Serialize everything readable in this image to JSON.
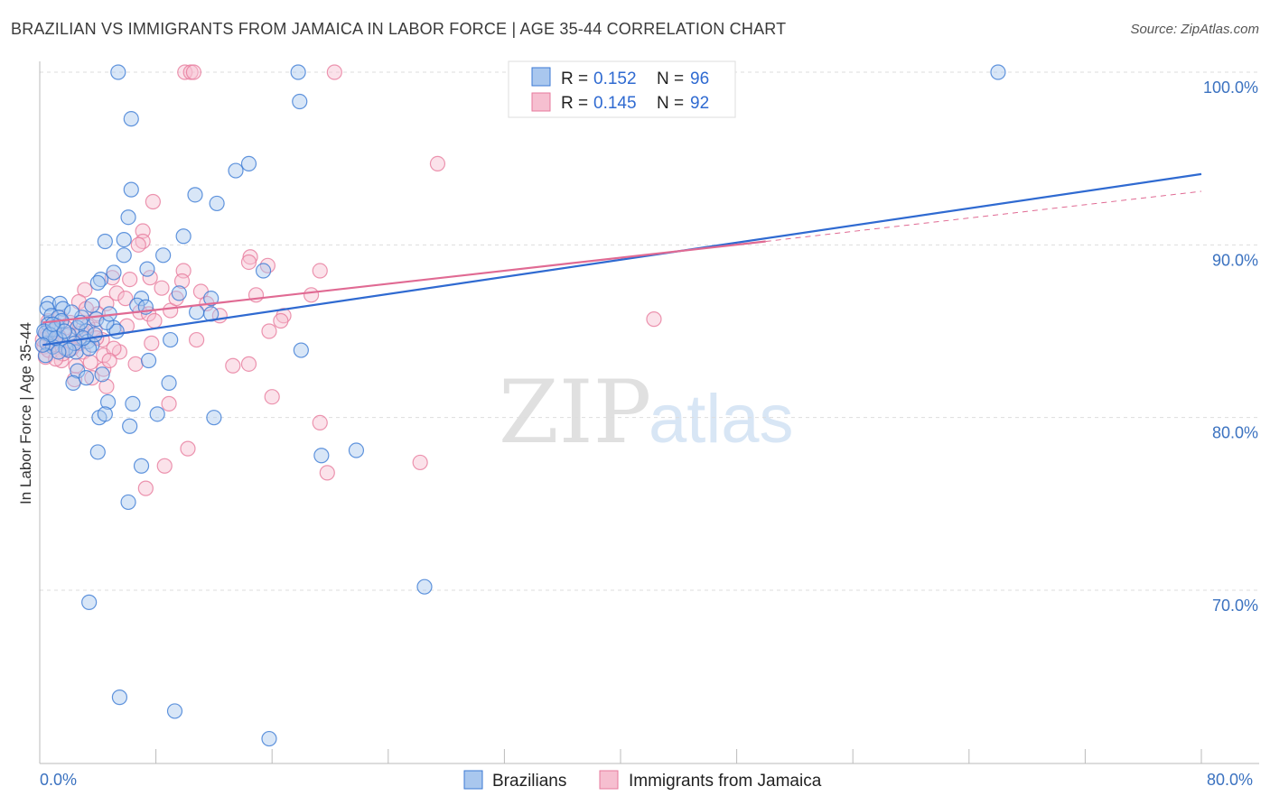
{
  "title": "BRAZILIAN VS IMMIGRANTS FROM JAMAICA IN LABOR FORCE | AGE 35-44 CORRELATION CHART",
  "source": "Source: ZipAtlas.com",
  "watermark": {
    "zip": "ZIP",
    "atlas": "atlas"
  },
  "colors": {
    "blue_fill": "#a9c7ee",
    "blue_stroke": "#3b7ad4",
    "blue_line": "#2f6ad1",
    "pink_fill": "#f6bfd0",
    "pink_stroke": "#e77a9c",
    "pink_line": "#e06a93",
    "axis_text": "#3b72c0",
    "grid": "#dddddd"
  },
  "legend": {
    "rows": [
      {
        "r_label": "R = ",
        "r_value": "0.152",
        "n_label": "N = ",
        "n_value": "96"
      },
      {
        "r_label": "R = ",
        "r_value": "0.145",
        "n_label": "N = ",
        "n_value": "92"
      }
    ]
  },
  "chart_data": {
    "type": "scatter",
    "xlabel": "",
    "ylabel": "In Labor Force | Age 35-44",
    "xlim": [
      0,
      80
    ],
    "ylim": [
      61.5,
      103
    ],
    "x_tick_labels": [
      "0.0%",
      "80.0%"
    ],
    "y_ticks": [
      100,
      90,
      80,
      70
    ],
    "y_tick_labels": [
      "100.0%",
      "90.0%",
      "80.0%",
      "70.0%"
    ],
    "grid": true,
    "legend_position": "top-center",
    "series": [
      {
        "name": "Brazilians",
        "color": "blue",
        "R": 0.152,
        "N": 96,
        "trend": {
          "x0": 0.2,
          "y0": 84.2,
          "x1": 80,
          "y1": 94.1
        },
        "points": [
          [
            5.4,
            100
          ],
          [
            17.8,
            100
          ],
          [
            66,
            100
          ],
          [
            17.9,
            98.3
          ],
          [
            6.3,
            97.3
          ],
          [
            14.4,
            94.7
          ],
          [
            13.5,
            94.3
          ],
          [
            6.3,
            93.2
          ],
          [
            10.7,
            92.9
          ],
          [
            12.2,
            92.4
          ],
          [
            6.1,
            91.6
          ],
          [
            9.9,
            90.5
          ],
          [
            4.5,
            90.2
          ],
          [
            5.8,
            90.3
          ],
          [
            5.8,
            89.4
          ],
          [
            8.5,
            89.4
          ],
          [
            7.4,
            88.6
          ],
          [
            15.4,
            88.5
          ],
          [
            5.1,
            88.4
          ],
          [
            4.2,
            88.0
          ],
          [
            4.0,
            87.8
          ],
          [
            9.6,
            87.2
          ],
          [
            11.8,
            86.9
          ],
          [
            7.0,
            86.9
          ],
          [
            0.6,
            86.6
          ],
          [
            1.4,
            86.6
          ],
          [
            0.5,
            86.3
          ],
          [
            1.6,
            86.3
          ],
          [
            3.6,
            86.5
          ],
          [
            6.7,
            86.5
          ],
          [
            10.8,
            86.1
          ],
          [
            11.8,
            86.0
          ],
          [
            7.3,
            86.4
          ],
          [
            0.8,
            85.9
          ],
          [
            1.3,
            85.8
          ],
          [
            2.9,
            85.8
          ],
          [
            3.9,
            85.7
          ],
          [
            0.6,
            85.4
          ],
          [
            1.2,
            85.3
          ],
          [
            2.6,
            85.2
          ],
          [
            3.2,
            85.0
          ],
          [
            5.1,
            85.2
          ],
          [
            5.3,
            85.0
          ],
          [
            0.4,
            84.9
          ],
          [
            2.0,
            84.8
          ],
          [
            0.5,
            84.3
          ],
          [
            1.4,
            84.5
          ],
          [
            0.9,
            84.1
          ],
          [
            3.3,
            84.4
          ],
          [
            3.6,
            84.2
          ],
          [
            9.0,
            84.5
          ],
          [
            0.4,
            83.6
          ],
          [
            2.5,
            83.8
          ],
          [
            3.4,
            84.0
          ],
          [
            18.0,
            83.9
          ],
          [
            7.5,
            83.3
          ],
          [
            2.6,
            82.7
          ],
          [
            4.3,
            82.5
          ],
          [
            2.3,
            82.0
          ],
          [
            8.9,
            82.0
          ],
          [
            3.2,
            82.3
          ],
          [
            4.7,
            80.9
          ],
          [
            6.4,
            80.8
          ],
          [
            4.1,
            80.0
          ],
          [
            4.5,
            80.2
          ],
          [
            8.1,
            80.2
          ],
          [
            12.0,
            80.0
          ],
          [
            6.2,
            79.5
          ],
          [
            4.0,
            78.0
          ],
          [
            19.4,
            77.8
          ],
          [
            21.8,
            78.1
          ],
          [
            7.0,
            77.2
          ],
          [
            6.1,
            75.1
          ],
          [
            26.5,
            70.2
          ],
          [
            3.4,
            69.3
          ],
          [
            5.5,
            63.8
          ],
          [
            9.3,
            63.0
          ],
          [
            15.8,
            61.4
          ],
          [
            1.0,
            85.1
          ],
          [
            2.2,
            86.1
          ],
          [
            1.8,
            84.0
          ],
          [
            4.6,
            85.5
          ],
          [
            0.3,
            85.0
          ],
          [
            1.1,
            84.6
          ],
          [
            2.8,
            85.5
          ],
          [
            0.7,
            84.8
          ],
          [
            3.0,
            84.6
          ],
          [
            1.5,
            85.6
          ],
          [
            2.4,
            84.3
          ],
          [
            0.2,
            84.2
          ],
          [
            1.7,
            85.0
          ],
          [
            3.8,
            84.8
          ],
          [
            0.9,
            85.4
          ],
          [
            2.0,
            83.9
          ],
          [
            4.8,
            86.0
          ],
          [
            1.3,
            83.8
          ]
        ]
      },
      {
        "name": "Immigrants from Jamaica",
        "color": "pink",
        "R": 0.145,
        "N": 92,
        "trend": {
          "x0": 0.2,
          "y0": 85.5,
          "x1": 50,
          "y1": 90.2
        },
        "trend_dashed": {
          "x0": 50,
          "y0": 90.2,
          "x1": 80,
          "y1": 93.1
        },
        "points": [
          [
            10.0,
            100
          ],
          [
            10.4,
            100
          ],
          [
            10.6,
            100
          ],
          [
            20.3,
            100
          ],
          [
            27.4,
            94.7
          ],
          [
            7.8,
            92.5
          ],
          [
            7.1,
            90.8
          ],
          [
            7.1,
            90.2
          ],
          [
            6.8,
            90.0
          ],
          [
            14.5,
            89.3
          ],
          [
            14.4,
            89.0
          ],
          [
            15.7,
            88.8
          ],
          [
            9.9,
            88.5
          ],
          [
            19.3,
            88.5
          ],
          [
            7.6,
            88.1
          ],
          [
            5.0,
            88.1
          ],
          [
            6.2,
            88.0
          ],
          [
            9.8,
            87.9
          ],
          [
            8.4,
            87.5
          ],
          [
            11.1,
            87.3
          ],
          [
            3.1,
            87.4
          ],
          [
            5.3,
            87.2
          ],
          [
            14.9,
            87.1
          ],
          [
            18.7,
            87.1
          ],
          [
            2.7,
            86.7
          ],
          [
            4.6,
            86.6
          ],
          [
            5.9,
            86.9
          ],
          [
            6.9,
            86.1
          ],
          [
            9.0,
            86.2
          ],
          [
            4.0,
            86.0
          ],
          [
            7.5,
            86.0
          ],
          [
            12.4,
            85.9
          ],
          [
            16.8,
            85.9
          ],
          [
            16.6,
            85.6
          ],
          [
            42.3,
            85.7
          ],
          [
            0.6,
            85.6
          ],
          [
            1.4,
            85.8
          ],
          [
            2.1,
            85.5
          ],
          [
            3.8,
            85.1
          ],
          [
            15.8,
            85.0
          ],
          [
            0.5,
            84.8
          ],
          [
            1.0,
            84.6
          ],
          [
            2.5,
            84.7
          ],
          [
            4.3,
            84.5
          ],
          [
            7.7,
            84.3
          ],
          [
            10.8,
            84.5
          ],
          [
            0.3,
            84.1
          ],
          [
            1.2,
            84.2
          ],
          [
            2.0,
            83.9
          ],
          [
            3.0,
            83.8
          ],
          [
            4.4,
            83.6
          ],
          [
            5.5,
            83.8
          ],
          [
            0.4,
            83.5
          ],
          [
            1.5,
            83.3
          ],
          [
            3.5,
            83.2
          ],
          [
            6.6,
            83.1
          ],
          [
            13.3,
            83.0
          ],
          [
            14.4,
            83.1
          ],
          [
            4.4,
            82.8
          ],
          [
            2.4,
            82.2
          ],
          [
            3.6,
            82.3
          ],
          [
            4.6,
            81.8
          ],
          [
            16.0,
            81.2
          ],
          [
            8.9,
            80.8
          ],
          [
            19.3,
            79.7
          ],
          [
            10.2,
            78.2
          ],
          [
            26.2,
            77.4
          ],
          [
            8.6,
            77.2
          ],
          [
            19.8,
            76.8
          ],
          [
            7.3,
            75.9
          ],
          [
            0.8,
            84.4
          ],
          [
            1.8,
            85.2
          ],
          [
            2.9,
            84.9
          ],
          [
            0.6,
            83.9
          ],
          [
            1.3,
            84.7
          ],
          [
            2.2,
            84.0
          ],
          [
            3.3,
            85.3
          ],
          [
            0.2,
            84.5
          ],
          [
            1.6,
            83.7
          ],
          [
            2.7,
            84.3
          ],
          [
            0.9,
            85.0
          ],
          [
            3.9,
            84.6
          ],
          [
            5.1,
            84.0
          ],
          [
            6.0,
            85.3
          ],
          [
            4.8,
            83.3
          ],
          [
            2.5,
            83.0
          ],
          [
            7.9,
            85.6
          ],
          [
            1.1,
            83.4
          ],
          [
            0.4,
            84.9
          ],
          [
            3.2,
            86.3
          ],
          [
            9.4,
            86.9
          ],
          [
            11.5,
            86.6
          ]
        ]
      }
    ]
  }
}
